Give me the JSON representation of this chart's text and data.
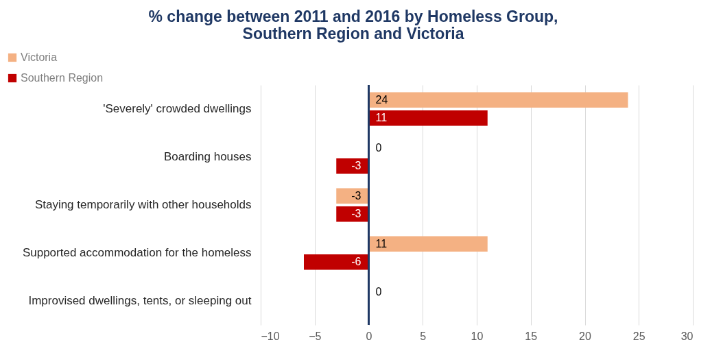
{
  "chart_data": {
    "type": "bar",
    "orientation": "horizontal",
    "title": "% change between 2011 and 2016 by Homeless Group,\nSouthern Region and Victoria",
    "categories": [
      "'Severely' crowded dwellings",
      "Boarding houses",
      "Staying temporarily with other households",
      "Supported accommodation for the homeless",
      "Improvised dwellings, tents, or sleeping out"
    ],
    "series": [
      {
        "name": "Victoria",
        "color": "#f4b183",
        "values": [
          24,
          0,
          -3,
          11,
          0
        ]
      },
      {
        "name": "Southern Region",
        "color": "#c00000",
        "values": [
          11,
          -3,
          -3,
          -6,
          null
        ]
      }
    ],
    "xlim": [
      -10,
      30
    ],
    "xticks": [
      -10,
      -5,
      0,
      5,
      10,
      15,
      20,
      25,
      30
    ],
    "ref_lines": [
      {
        "axis": "x",
        "value": 0,
        "color": "#1f3864"
      }
    ],
    "grid": "x",
    "legend": "top left",
    "data_labels": true
  }
}
